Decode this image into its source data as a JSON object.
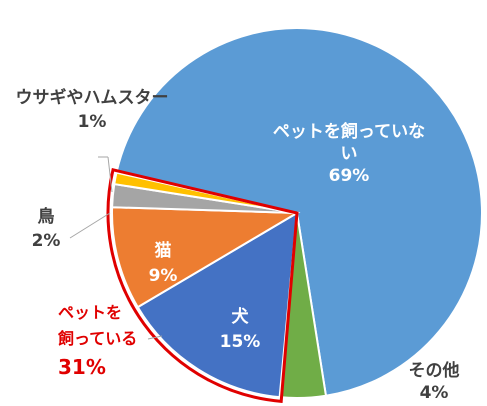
{
  "chart_data": {
    "type": "pie",
    "slices": [
      {
        "label_lines": [
          "ペットを飼っていな",
          "い"
        ],
        "value": 69,
        "value_text": "69%",
        "color": "#5B9BD5"
      },
      {
        "label_lines": [
          "その他"
        ],
        "value": 4,
        "value_text": "4%",
        "color": "#70AD47"
      },
      {
        "label_lines": [
          "犬"
        ],
        "value": 15,
        "value_text": "15%",
        "color": "#4472C4"
      },
      {
        "label_lines": [
          "猫"
        ],
        "value": 9,
        "value_text": "9%",
        "color": "#ED7D31"
      },
      {
        "label_lines": [
          "鳥"
        ],
        "value": 2,
        "value_text": "2%",
        "color": "#A5A5A5"
      },
      {
        "label_lines": [
          "ウサギやハムスター"
        ],
        "value": 1,
        "value_text": "1%",
        "color": "#FFC000"
      }
    ],
    "group_callout": {
      "lines": [
        "ペットを",
        "飼っている",
        "31%"
      ],
      "outline_color": "#E00000"
    }
  }
}
